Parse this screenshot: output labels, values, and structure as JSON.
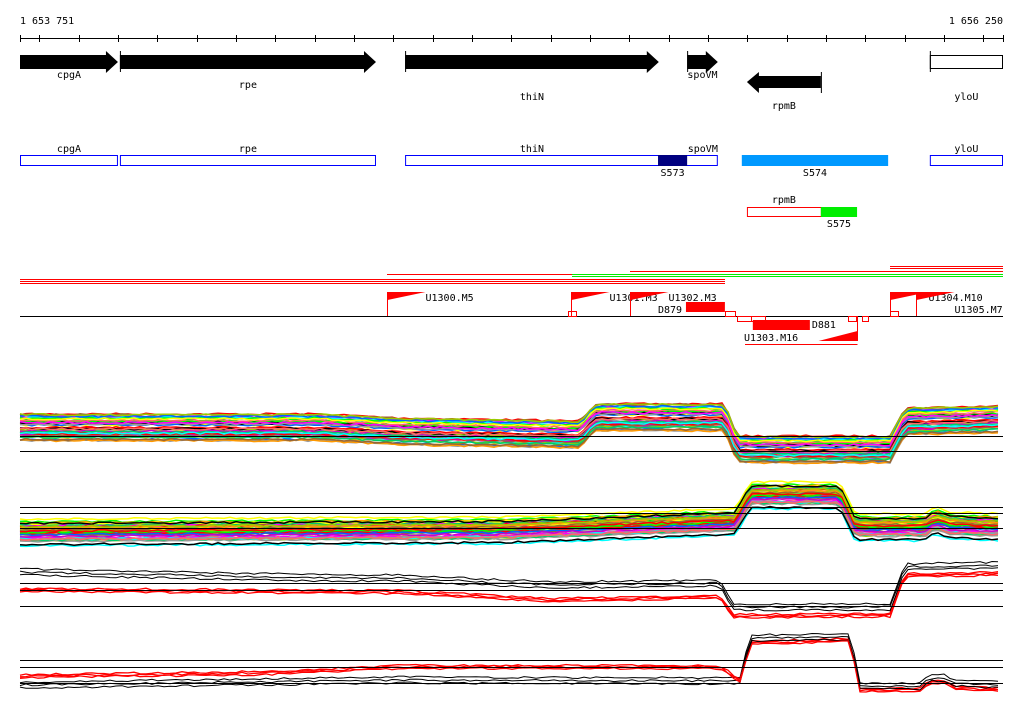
{
  "ruler": {
    "start": 1653751,
    "end": 1656250,
    "start_label": "1 653 751",
    "end_label": "1 656 250",
    "tick_step": 100
  },
  "colors": {
    "gene": "#000000",
    "segment_outline": "#0000ff",
    "S573": "#000080",
    "S574": "#0099ff",
    "S575": "#00ee00",
    "feature": "#ff0000",
    "transcript_green": "#00ee00"
  },
  "genes": [
    {
      "name": "cpgA",
      "start": 1653751,
      "end": 1654000,
      "strand": "+"
    },
    {
      "name": "rpe",
      "start": 1654005,
      "end": 1654656,
      "strand": "+"
    },
    {
      "name": "thiN",
      "start": 1654730,
      "end": 1655375,
      "strand": "+"
    },
    {
      "name": "spoVM",
      "start": 1655447,
      "end": 1655525,
      "strand": "+"
    },
    {
      "name": "rpmB",
      "start": 1655599,
      "end": 1655787,
      "strand": "-"
    },
    {
      "name": "yloU",
      "start": 1656064,
      "end": 1656250,
      "strand": "partial"
    }
  ],
  "segments": [
    {
      "label": "cpgA",
      "start": 1653751,
      "end": 1654000
    },
    {
      "label": "rpe",
      "start": 1654005,
      "end": 1654656
    },
    {
      "label": "thiN",
      "start": 1654730,
      "end": 1655525,
      "label2": "spoVM"
    },
    {
      "label": "yloU",
      "start": 1656064,
      "end": 1656250
    }
  ],
  "regions": [
    {
      "label": "S573",
      "start": 1655373,
      "end": 1655447,
      "color": "#000080"
    },
    {
      "label": "S574",
      "start": 1655586,
      "end": 1655958,
      "color": "#0099ff"
    }
  ],
  "rpmB_box": {
    "label": "rpmB",
    "start": 1655599,
    "end": 1655787,
    "region": {
      "label": "S575",
      "start": 1655787,
      "end": 1655879
    }
  },
  "features": [
    {
      "label": "U1300.M5",
      "pos": 1654684,
      "type": "upshift"
    },
    {
      "label": "U1301.M3",
      "pos": 1655152,
      "type": "upshift"
    },
    {
      "label": "U1302.M3",
      "pos": 1655302,
      "type": "upshift"
    },
    {
      "label": "D879",
      "start": 1655444,
      "end": 1655543,
      "type": "down"
    },
    {
      "label": "D881",
      "start": 1655614,
      "end": 1655759,
      "type": "down"
    },
    {
      "label": "U1303.M16",
      "pos": 1655879,
      "type": "upshift-reverse"
    },
    {
      "label": "U1304.M10",
      "pos": 1655963,
      "type": "upshift"
    },
    {
      "label": "U1305.M7",
      "pos": 1656029,
      "type": "upshift"
    }
  ],
  "trace_palette": [
    "#ff0000",
    "#ff00ff",
    "#00ffff",
    "#00ff00",
    "#ffff00",
    "#ff9900",
    "#0066ff",
    "#999999",
    "#996633",
    "#000000",
    "#99cc00",
    "#cc00cc",
    "#00cc66",
    "#ff6666"
  ]
}
